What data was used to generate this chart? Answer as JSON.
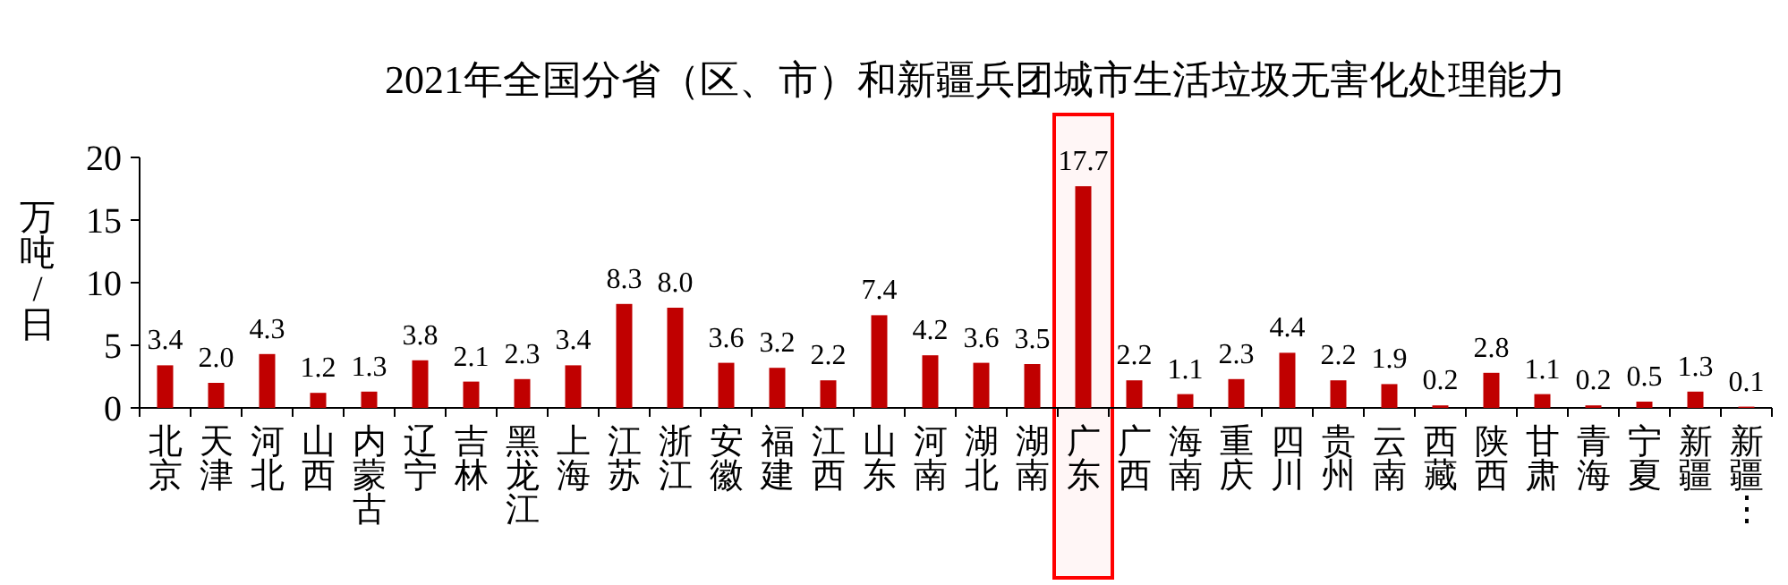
{
  "chart_data": {
    "type": "bar",
    "title": "2021年全国分省（区、市）和新疆兵团城市生活垃圾无害化处理能力",
    "ylabel": "万吨/日",
    "categories": [
      "北京",
      "天津",
      "河北",
      "山西",
      "内蒙古",
      "辽宁",
      "吉林",
      "黑龙江",
      "上海",
      "江苏",
      "浙江",
      "安徽",
      "福建",
      "江西",
      "山东",
      "河南",
      "湖北",
      "湖南",
      "广东",
      "广西",
      "海南",
      "重庆",
      "四川",
      "贵州",
      "云南",
      "西藏",
      "陕西",
      "甘肃",
      "青海",
      "宁夏",
      "新疆",
      "新疆⋮"
    ],
    "values": [
      3.4,
      2.0,
      4.3,
      1.2,
      1.3,
      3.8,
      2.1,
      2.3,
      3.4,
      8.3,
      8.0,
      3.6,
      3.2,
      2.2,
      7.4,
      4.2,
      3.6,
      3.5,
      17.7,
      2.2,
      1.1,
      2.3,
      4.4,
      2.2,
      1.9,
      0.2,
      2.8,
      1.1,
      0.2,
      0.5,
      1.3,
      0.1
    ],
    "value_labels": [
      "3.4",
      "2.0",
      "4.3",
      "1.2",
      "1.3",
      "3.8",
      "2.1",
      "2.3",
      "3.4",
      "8.3",
      "8.0",
      "3.6",
      "3.2",
      "2.2",
      "7.4",
      "4.2",
      "3.6",
      "3.5",
      "17.7",
      "2.2",
      "1.1",
      "2.3",
      "4.4",
      "2.2",
      "1.9",
      "0.2",
      "2.8",
      "1.1",
      "0.2",
      "0.5",
      "1.3",
      "0.1"
    ],
    "color": "#c00000",
    "ylim": [
      0,
      20
    ],
    "yticks": [
      0,
      5,
      10,
      15,
      20
    ],
    "bands": [
      {
        "axis": "x",
        "from": "广东",
        "to": "广东",
        "color": "#ff0000"
      }
    ]
  }
}
